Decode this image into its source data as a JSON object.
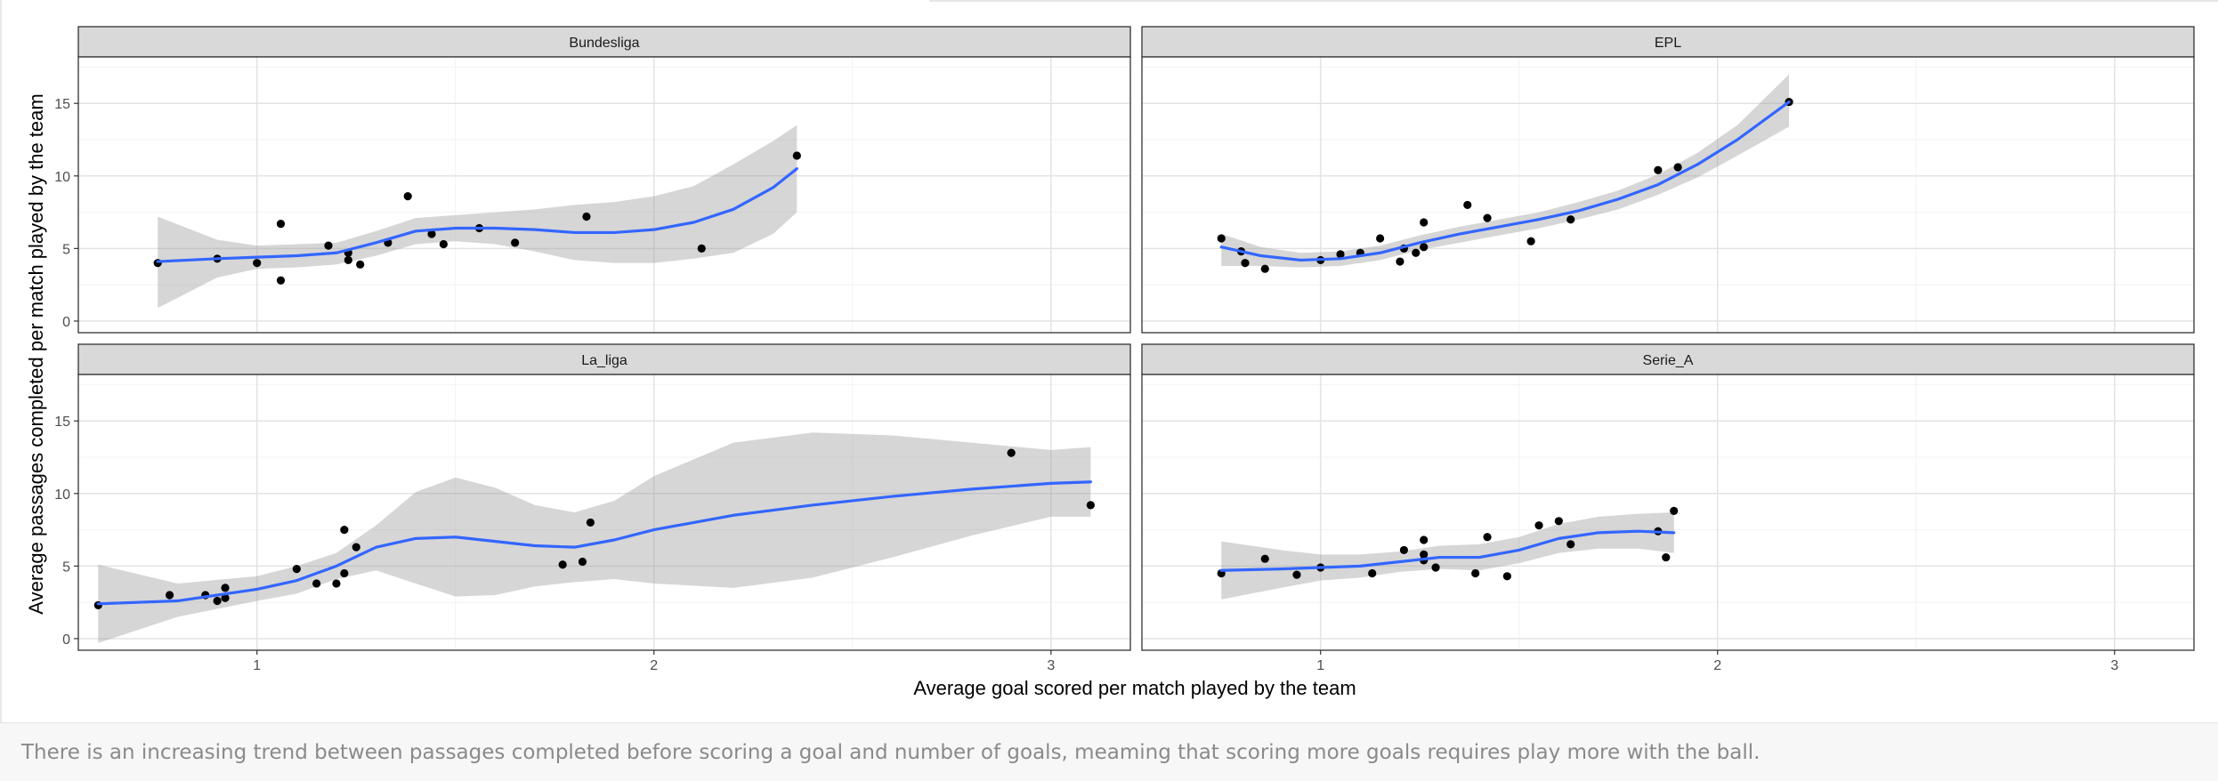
{
  "chart_data": {
    "type": "scatter",
    "facet_by": "league",
    "xlabel": "Average goal scored per match played by the team",
    "ylabel": "Average passages completed per match played by the team",
    "x_ticks": [
      1,
      2,
      3
    ],
    "y_ticks": [
      0,
      5,
      10,
      15
    ],
    "xlim": [
      0.55,
      3.2
    ],
    "ylim": [
      -0.8,
      18.2
    ],
    "grid": true,
    "smoother": "loess with confidence band",
    "colors": {
      "points": "#000000",
      "smooth_line": "#3366ff",
      "confidence_band": "#999999",
      "strip": "#d9d9d9"
    },
    "panels": [
      {
        "name": "Bundesliga",
        "points": [
          [
            0.75,
            4.0
          ],
          [
            0.9,
            4.3
          ],
          [
            1.0,
            4.0
          ],
          [
            1.06,
            6.7
          ],
          [
            1.06,
            2.8
          ],
          [
            1.18,
            5.2
          ],
          [
            1.23,
            4.7
          ],
          [
            1.23,
            4.2
          ],
          [
            1.26,
            3.9
          ],
          [
            1.33,
            5.4
          ],
          [
            1.38,
            8.6
          ],
          [
            1.44,
            6.0
          ],
          [
            1.47,
            5.3
          ],
          [
            1.56,
            6.4
          ],
          [
            1.65,
            5.4
          ],
          [
            1.83,
            7.2
          ],
          [
            2.12,
            5.0
          ],
          [
            2.36,
            11.4
          ]
        ],
        "smooth": [
          [
            0.75,
            4.1
          ],
          [
            0.9,
            4.3
          ],
          [
            1.0,
            4.4
          ],
          [
            1.1,
            4.5
          ],
          [
            1.2,
            4.7
          ],
          [
            1.3,
            5.4
          ],
          [
            1.4,
            6.2
          ],
          [
            1.5,
            6.4
          ],
          [
            1.6,
            6.4
          ],
          [
            1.7,
            6.3
          ],
          [
            1.8,
            6.1
          ],
          [
            1.9,
            6.1
          ],
          [
            2.0,
            6.3
          ],
          [
            2.1,
            6.8
          ],
          [
            2.2,
            7.7
          ],
          [
            2.3,
            9.2
          ],
          [
            2.36,
            10.5
          ]
        ],
        "band_upper": [
          [
            0.75,
            7.2
          ],
          [
            0.9,
            5.6
          ],
          [
            1.0,
            5.2
          ],
          [
            1.1,
            5.3
          ],
          [
            1.2,
            5.4
          ],
          [
            1.3,
            6.2
          ],
          [
            1.4,
            7.1
          ],
          [
            1.5,
            7.3
          ],
          [
            1.6,
            7.5
          ],
          [
            1.7,
            7.7
          ],
          [
            1.8,
            8.0
          ],
          [
            1.9,
            8.2
          ],
          [
            2.0,
            8.6
          ],
          [
            2.1,
            9.3
          ],
          [
            2.2,
            10.8
          ],
          [
            2.3,
            12.4
          ],
          [
            2.36,
            13.5
          ]
        ],
        "band_lower": [
          [
            0.75,
            0.9
          ],
          [
            0.9,
            3.0
          ],
          [
            1.0,
            3.6
          ],
          [
            1.1,
            3.7
          ],
          [
            1.2,
            3.9
          ],
          [
            1.3,
            4.5
          ],
          [
            1.4,
            5.3
          ],
          [
            1.5,
            5.5
          ],
          [
            1.6,
            5.3
          ],
          [
            1.7,
            4.8
          ],
          [
            1.8,
            4.2
          ],
          [
            1.9,
            4.0
          ],
          [
            2.0,
            4.0
          ],
          [
            2.1,
            4.3
          ],
          [
            2.2,
            4.7
          ],
          [
            2.3,
            6.0
          ],
          [
            2.36,
            7.5
          ]
        ]
      },
      {
        "name": "EPL",
        "points": [
          [
            0.75,
            5.7
          ],
          [
            0.8,
            4.8
          ],
          [
            0.81,
            4.0
          ],
          [
            0.86,
            3.6
          ],
          [
            1.0,
            4.2
          ],
          [
            1.05,
            4.6
          ],
          [
            1.1,
            4.7
          ],
          [
            1.15,
            5.7
          ],
          [
            1.2,
            4.1
          ],
          [
            1.21,
            5.0
          ],
          [
            1.24,
            4.7
          ],
          [
            1.26,
            6.8
          ],
          [
            1.26,
            5.1
          ],
          [
            1.37,
            8.0
          ],
          [
            1.42,
            7.1
          ],
          [
            1.53,
            5.5
          ],
          [
            1.63,
            7.0
          ],
          [
            1.85,
            10.4
          ],
          [
            1.9,
            10.6
          ],
          [
            2.18,
            15.1
          ]
        ],
        "smooth": [
          [
            0.75,
            5.1
          ],
          [
            0.85,
            4.5
          ],
          [
            0.95,
            4.2
          ],
          [
            1.05,
            4.3
          ],
          [
            1.15,
            4.7
          ],
          [
            1.25,
            5.4
          ],
          [
            1.35,
            6.0
          ],
          [
            1.45,
            6.5
          ],
          [
            1.55,
            7.0
          ],
          [
            1.65,
            7.6
          ],
          [
            1.75,
            8.4
          ],
          [
            1.85,
            9.4
          ],
          [
            1.95,
            10.8
          ],
          [
            2.05,
            12.5
          ],
          [
            2.18,
            15.1
          ]
        ],
        "band_upper": [
          [
            0.75,
            6.0
          ],
          [
            0.85,
            5.1
          ],
          [
            0.95,
            4.7
          ],
          [
            1.05,
            4.8
          ],
          [
            1.15,
            5.2
          ],
          [
            1.25,
            5.9
          ],
          [
            1.35,
            6.5
          ],
          [
            1.45,
            7.0
          ],
          [
            1.55,
            7.5
          ],
          [
            1.65,
            8.2
          ],
          [
            1.75,
            9.0
          ],
          [
            1.85,
            10.1
          ],
          [
            1.95,
            11.6
          ],
          [
            2.05,
            13.5
          ],
          [
            2.18,
            17.0
          ]
        ],
        "band_lower": [
          [
            0.75,
            3.8
          ],
          [
            0.85,
            3.8
          ],
          [
            0.95,
            3.7
          ],
          [
            1.05,
            3.8
          ],
          [
            1.15,
            4.2
          ],
          [
            1.25,
            4.9
          ],
          [
            1.35,
            5.4
          ],
          [
            1.45,
            5.9
          ],
          [
            1.55,
            6.4
          ],
          [
            1.65,
            7.0
          ],
          [
            1.75,
            7.7
          ],
          [
            1.85,
            8.7
          ],
          [
            1.95,
            9.9
          ],
          [
            2.05,
            11.4
          ],
          [
            2.18,
            13.4
          ]
        ]
      },
      {
        "name": "La_liga",
        "points": [
          [
            0.6,
            2.3
          ],
          [
            0.78,
            3.0
          ],
          [
            0.87,
            3.0
          ],
          [
            0.9,
            2.6
          ],
          [
            0.92,
            3.5
          ],
          [
            0.92,
            2.8
          ],
          [
            1.1,
            4.8
          ],
          [
            1.15,
            3.8
          ],
          [
            1.2,
            3.8
          ],
          [
            1.22,
            7.5
          ],
          [
            1.22,
            4.5
          ],
          [
            1.25,
            6.3
          ],
          [
            1.77,
            5.1
          ],
          [
            1.82,
            5.3
          ],
          [
            1.84,
            8.0
          ],
          [
            2.9,
            12.8
          ],
          [
            3.1,
            9.2
          ]
        ],
        "smooth": [
          [
            0.6,
            2.4
          ],
          [
            0.8,
            2.6
          ],
          [
            1.0,
            3.4
          ],
          [
            1.1,
            4.0
          ],
          [
            1.2,
            5.0
          ],
          [
            1.3,
            6.3
          ],
          [
            1.4,
            6.9
          ],
          [
            1.5,
            7.0
          ],
          [
            1.6,
            6.7
          ],
          [
            1.7,
            6.4
          ],
          [
            1.8,
            6.3
          ],
          [
            1.9,
            6.8
          ],
          [
            2.0,
            7.5
          ],
          [
            2.2,
            8.5
          ],
          [
            2.4,
            9.2
          ],
          [
            2.6,
            9.8
          ],
          [
            2.8,
            10.3
          ],
          [
            3.0,
            10.7
          ],
          [
            3.1,
            10.8
          ]
        ],
        "band_upper": [
          [
            0.6,
            5.1
          ],
          [
            0.8,
            3.8
          ],
          [
            1.0,
            4.3
          ],
          [
            1.1,
            5.0
          ],
          [
            1.2,
            5.9
          ],
          [
            1.3,
            7.8
          ],
          [
            1.4,
            10.1
          ],
          [
            1.5,
            11.1
          ],
          [
            1.6,
            10.4
          ],
          [
            1.7,
            9.2
          ],
          [
            1.8,
            8.7
          ],
          [
            1.9,
            9.5
          ],
          [
            2.0,
            11.2
          ],
          [
            2.2,
            13.5
          ],
          [
            2.4,
            14.2
          ],
          [
            2.6,
            14.0
          ],
          [
            2.8,
            13.5
          ],
          [
            3.0,
            13.0
          ],
          [
            3.1,
            13.2
          ]
        ],
        "band_lower": [
          [
            0.6,
            -0.3
          ],
          [
            0.8,
            1.5
          ],
          [
            1.0,
            2.6
          ],
          [
            1.1,
            3.1
          ],
          [
            1.2,
            4.1
          ],
          [
            1.3,
            4.7
          ],
          [
            1.4,
            3.8
          ],
          [
            1.5,
            2.9
          ],
          [
            1.6,
            3.0
          ],
          [
            1.7,
            3.6
          ],
          [
            1.8,
            3.9
          ],
          [
            1.9,
            4.1
          ],
          [
            2.0,
            3.8
          ],
          [
            2.2,
            3.5
          ],
          [
            2.4,
            4.2
          ],
          [
            2.6,
            5.6
          ],
          [
            2.8,
            7.1
          ],
          [
            3.0,
            8.4
          ],
          [
            3.1,
            8.4
          ]
        ]
      },
      {
        "name": "Serie_A",
        "points": [
          [
            0.75,
            4.5
          ],
          [
            0.86,
            5.5
          ],
          [
            0.94,
            4.4
          ],
          [
            1.0,
            4.9
          ],
          [
            1.13,
            4.5
          ],
          [
            1.21,
            6.1
          ],
          [
            1.26,
            6.8
          ],
          [
            1.26,
            5.8
          ],
          [
            1.26,
            5.4
          ],
          [
            1.29,
            4.9
          ],
          [
            1.39,
            4.5
          ],
          [
            1.42,
            7.0
          ],
          [
            1.47,
            4.3
          ],
          [
            1.55,
            7.8
          ],
          [
            1.6,
            8.1
          ],
          [
            1.63,
            6.5
          ],
          [
            1.85,
            7.4
          ],
          [
            1.87,
            5.6
          ],
          [
            1.89,
            8.8
          ]
        ],
        "smooth": [
          [
            0.75,
            4.7
          ],
          [
            0.9,
            4.8
          ],
          [
            1.0,
            4.9
          ],
          [
            1.1,
            5.0
          ],
          [
            1.2,
            5.3
          ],
          [
            1.3,
            5.6
          ],
          [
            1.4,
            5.6
          ],
          [
            1.5,
            6.1
          ],
          [
            1.6,
            6.9
          ],
          [
            1.7,
            7.3
          ],
          [
            1.8,
            7.4
          ],
          [
            1.89,
            7.3
          ]
        ],
        "band_upper": [
          [
            0.75,
            6.7
          ],
          [
            0.9,
            6.1
          ],
          [
            1.0,
            5.8
          ],
          [
            1.1,
            5.8
          ],
          [
            1.2,
            6.0
          ],
          [
            1.3,
            6.4
          ],
          [
            1.4,
            6.5
          ],
          [
            1.5,
            7.0
          ],
          [
            1.6,
            7.9
          ],
          [
            1.7,
            8.4
          ],
          [
            1.8,
            8.6
          ],
          [
            1.89,
            8.7
          ]
        ],
        "band_lower": [
          [
            0.75,
            2.7
          ],
          [
            0.9,
            3.5
          ],
          [
            1.0,
            4.0
          ],
          [
            1.1,
            4.2
          ],
          [
            1.2,
            4.6
          ],
          [
            1.3,
            4.8
          ],
          [
            1.4,
            4.7
          ],
          [
            1.5,
            5.2
          ],
          [
            1.6,
            5.9
          ],
          [
            1.7,
            6.2
          ],
          [
            1.8,
            6.2
          ],
          [
            1.89,
            5.9
          ]
        ]
      }
    ]
  },
  "caption": "There is an increasing trend between passages completed before scoring a goal and number of goals, meaming that scoring more goals requires play more with the ball."
}
